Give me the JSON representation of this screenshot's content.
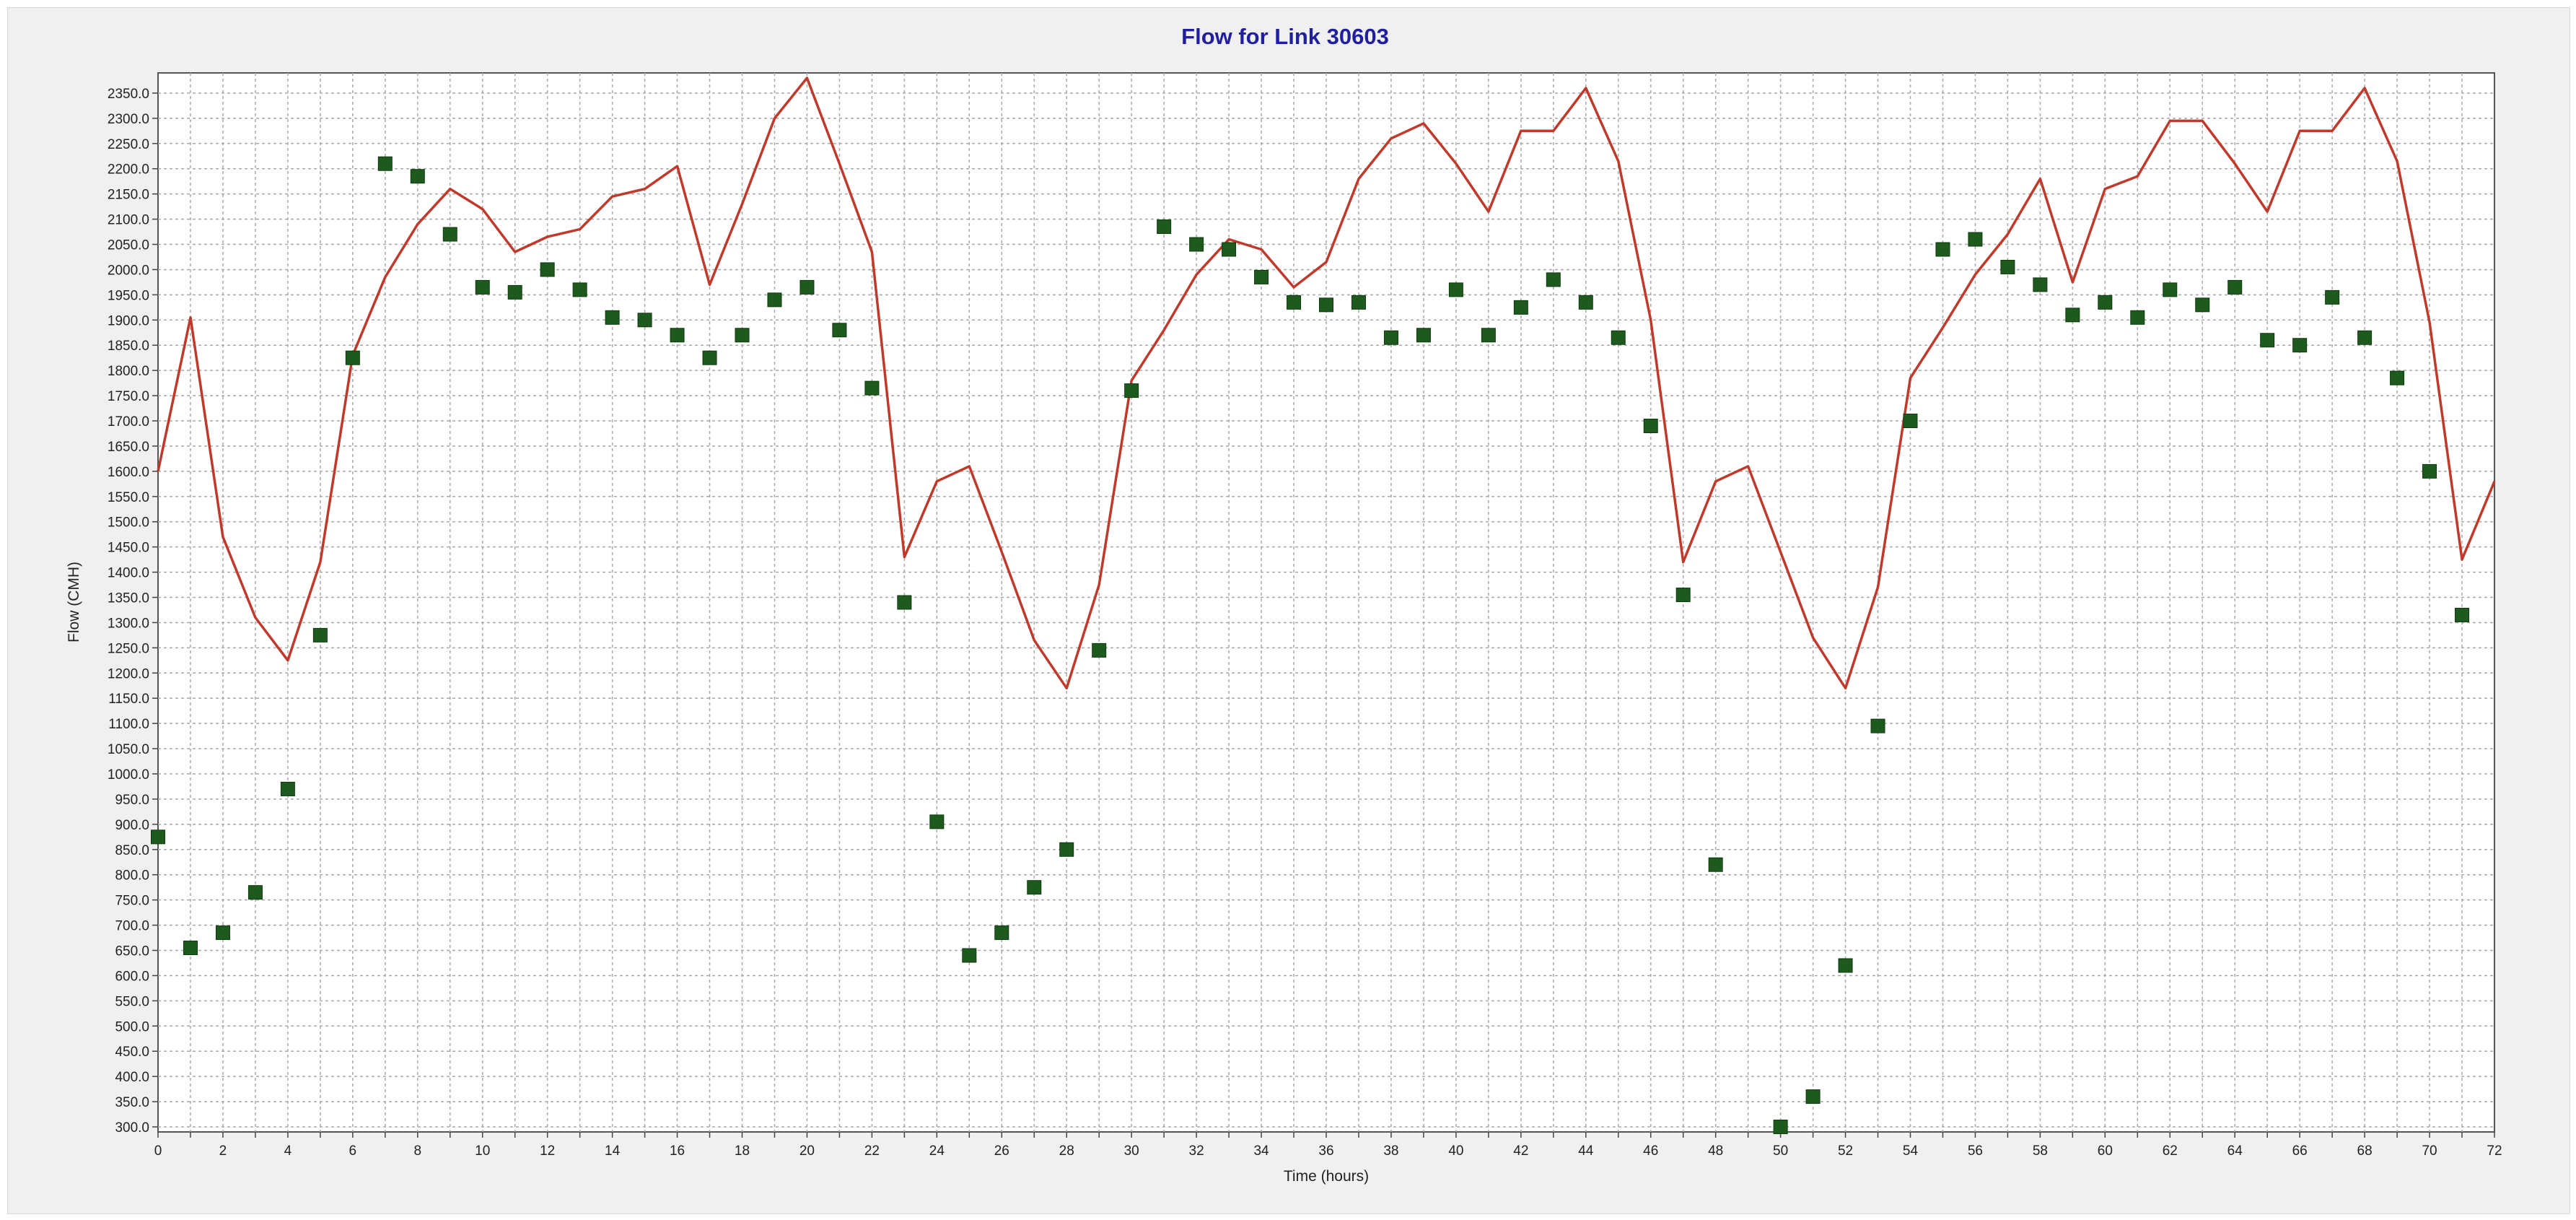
{
  "chart_data": {
    "type": "line",
    "title": "Flow for Link 30603",
    "xlabel": "Time (hours)",
    "ylabel": "Flow (CMH)",
    "xlim": [
      0,
      72
    ],
    "ylim": [
      290,
      2390
    ],
    "xticks": [
      0,
      2,
      4,
      6,
      8,
      10,
      12,
      14,
      16,
      18,
      20,
      22,
      24,
      26,
      28,
      30,
      32,
      34,
      36,
      38,
      40,
      42,
      44,
      46,
      48,
      50,
      52,
      54,
      56,
      58,
      60,
      62,
      64,
      66,
      68,
      70,
      72
    ],
    "yticks": [
      300,
      350,
      400,
      450,
      500,
      550,
      600,
      650,
      700,
      750,
      800,
      850,
      900,
      950,
      1000,
      1050,
      1100,
      1150,
      1200,
      1250,
      1300,
      1350,
      1400,
      1450,
      1500,
      1550,
      1600,
      1650,
      1700,
      1750,
      1800,
      1850,
      1900,
      1950,
      2000,
      2050,
      2100,
      2150,
      2200,
      2250,
      2300,
      2350
    ],
    "grid": true,
    "legend": "none",
    "series": [
      {
        "kind": "line",
        "color": "#c0392b",
        "points": [
          [
            0,
            1600
          ],
          [
            1,
            1905
          ],
          [
            2,
            1470
          ],
          [
            3,
            1310
          ],
          [
            4,
            1225
          ],
          [
            5,
            1420
          ],
          [
            6,
            1830
          ],
          [
            7,
            1985
          ],
          [
            8,
            2090
          ],
          [
            9,
            2160
          ],
          [
            10,
            2120
          ],
          [
            11,
            2035
          ],
          [
            12,
            2065
          ],
          [
            13,
            2080
          ],
          [
            14,
            2145
          ],
          [
            15,
            2160
          ],
          [
            16,
            2205
          ],
          [
            17,
            1970
          ],
          [
            18,
            2130
          ],
          [
            19,
            2300
          ],
          [
            20,
            2380
          ],
          [
            21,
            2210
          ],
          [
            22,
            2035
          ],
          [
            23,
            1430
          ],
          [
            24,
            1580
          ],
          [
            25,
            1610
          ],
          [
            26,
            1440
          ],
          [
            27,
            1265
          ],
          [
            28,
            1170
          ],
          [
            29,
            1375
          ],
          [
            30,
            1780
          ],
          [
            31,
            1880
          ],
          [
            32,
            1990
          ],
          [
            33,
            2060
          ],
          [
            34,
            2040
          ],
          [
            35,
            1965
          ],
          [
            36,
            2015
          ],
          [
            37,
            2180
          ],
          [
            38,
            2260
          ],
          [
            39,
            2290
          ],
          [
            40,
            2210
          ],
          [
            41,
            2115
          ],
          [
            42,
            2275
          ],
          [
            43,
            2275
          ],
          [
            44,
            2360
          ],
          [
            45,
            2215
          ],
          [
            46,
            1900
          ],
          [
            47,
            1420
          ],
          [
            48,
            1580
          ],
          [
            49,
            1610
          ],
          [
            50,
            1440
          ],
          [
            51,
            1270
          ],
          [
            52,
            1170
          ],
          [
            53,
            1370
          ],
          [
            54,
            1785
          ],
          [
            55,
            1885
          ],
          [
            56,
            1990
          ],
          [
            57,
            2070
          ],
          [
            58,
            2180
          ],
          [
            59,
            1975
          ],
          [
            60,
            2160
          ],
          [
            61,
            2185
          ],
          [
            62,
            2295
          ],
          [
            63,
            2295
          ],
          [
            64,
            2210
          ],
          [
            65,
            2115
          ],
          [
            66,
            2275
          ],
          [
            67,
            2275
          ],
          [
            68,
            2360
          ],
          [
            69,
            2215
          ],
          [
            70,
            1895
          ],
          [
            71,
            1425
          ],
          [
            72,
            1580
          ]
        ]
      },
      {
        "kind": "scatter",
        "color": "#1e5a1e",
        "points": [
          [
            0,
            875
          ],
          [
            1,
            655
          ],
          [
            2,
            685
          ],
          [
            3,
            765
          ],
          [
            4,
            970
          ],
          [
            5,
            1275
          ],
          [
            6,
            1825
          ],
          [
            7,
            2210
          ],
          [
            8,
            2185
          ],
          [
            9,
            2070
          ],
          [
            10,
            1965
          ],
          [
            11,
            1955
          ],
          [
            12,
            2000
          ],
          [
            13,
            1960
          ],
          [
            14,
            1905
          ],
          [
            15,
            1900
          ],
          [
            16,
            1870
          ],
          [
            17,
            1825
          ],
          [
            18,
            1870
          ],
          [
            19,
            1940
          ],
          [
            20,
            1965
          ],
          [
            21,
            1880
          ],
          [
            22,
            1765
          ],
          [
            23,
            1340
          ],
          [
            24,
            905
          ],
          [
            25,
            640
          ],
          [
            26,
            685
          ],
          [
            27,
            775
          ],
          [
            28,
            850
          ],
          [
            29,
            1245
          ],
          [
            30,
            1760
          ],
          [
            31,
            2085
          ],
          [
            32,
            2050
          ],
          [
            33,
            2040
          ],
          [
            34,
            1985
          ],
          [
            35,
            1935
          ],
          [
            36,
            1930
          ],
          [
            37,
            1935
          ],
          [
            38,
            1865
          ],
          [
            39,
            1870
          ],
          [
            40,
            1960
          ],
          [
            41,
            1870
          ],
          [
            42,
            1925
          ],
          [
            43,
            1980
          ],
          [
            44,
            1935
          ],
          [
            45,
            1865
          ],
          [
            46,
            1690
          ],
          [
            47,
            1355
          ],
          [
            48,
            820
          ],
          [
            49,
            null
          ],
          [
            50,
            300
          ],
          [
            51,
            360
          ],
          [
            52,
            620
          ],
          [
            53,
            1095
          ],
          [
            54,
            1700
          ],
          [
            55,
            2040
          ],
          [
            56,
            2060
          ],
          [
            57,
            2005
          ],
          [
            58,
            1970
          ],
          [
            59,
            1910
          ],
          [
            60,
            1935
          ],
          [
            61,
            1905
          ],
          [
            62,
            1960
          ],
          [
            63,
            1930
          ],
          [
            64,
            1965
          ],
          [
            65,
            1860
          ],
          [
            66,
            1850
          ],
          [
            67,
            1945
          ],
          [
            68,
            1865
          ],
          [
            69,
            1785
          ],
          [
            70,
            1600
          ],
          [
            71,
            1315
          ]
        ]
      }
    ],
    "title_color": "#1f1fa0"
  }
}
